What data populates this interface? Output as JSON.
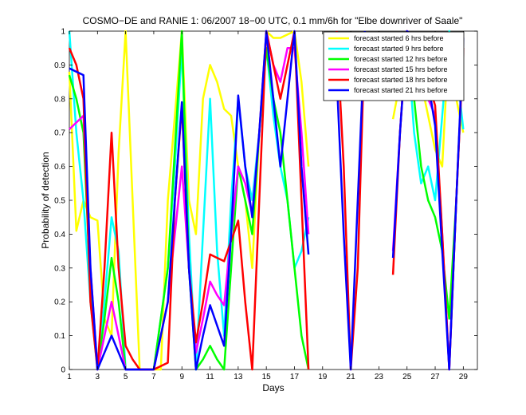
{
  "chart_data": {
    "type": "line",
    "title": "COSMO−DE and RANIE 1: 06/2007 18−00 UTC, 0.1 mm/6h for \"Elbe downriver of Saale\"",
    "xlabel": "Days",
    "ylabel": "Probability of detection",
    "xlim": [
      1,
      30
    ],
    "ylim": [
      0,
      1
    ],
    "x_ticks": [
      1,
      3,
      5,
      7,
      9,
      11,
      13,
      15,
      17,
      19,
      21,
      23,
      25,
      27,
      29
    ],
    "y_ticks": [
      0,
      0.1,
      0.2,
      0.3,
      0.4,
      0.5,
      0.6,
      0.7,
      0.8,
      0.9,
      1
    ],
    "y_tick_labels": [
      "0",
      "0.1",
      "0.2",
      "0.3",
      "0.4",
      "0.5",
      "0.6",
      "0.7",
      "0.8",
      "0.9",
      "1"
    ],
    "legend_position": "top-right",
    "series": [
      {
        "name": "forecast started 6 hrs before",
        "color": "#ffff00",
        "segments": [
          [
            [
              1,
              0.88
            ],
            [
              1.5,
              0.41
            ],
            [
              2,
              0.5
            ],
            [
              2.5,
              0.45
            ],
            [
              3,
              0.44
            ],
            [
              3.5,
              0.15
            ],
            [
              4,
              0.1
            ],
            [
              4.5,
              0.64
            ],
            [
              5,
              1.0
            ],
            [
              5.5,
              0.5
            ],
            [
              6,
              0.0
            ],
            [
              6.5,
              0.0
            ],
            [
              7,
              0.0
            ],
            [
              7.5,
              0.0
            ],
            [
              8,
              0.5
            ],
            [
              8.5,
              0.75
            ],
            [
              9,
              1.0
            ],
            [
              9.5,
              0.5
            ],
            [
              10,
              0.4
            ],
            [
              10.5,
              0.8
            ],
            [
              11,
              0.9
            ],
            [
              11.5,
              0.85
            ],
            [
              12,
              0.77
            ],
            [
              12.5,
              0.75
            ],
            [
              13,
              0.6
            ],
            [
              13.5,
              0.5
            ],
            [
              14,
              0.3
            ],
            [
              14.5,
              0.7
            ],
            [
              15,
              1.0
            ],
            [
              15.5,
              0.98
            ],
            [
              16,
              0.98
            ],
            [
              16.5,
              0.99
            ],
            [
              17,
              1.0
            ],
            [
              17.5,
              0.85
            ],
            [
              18,
              0.6
            ]
          ],
          [
            [
              24,
              0.74
            ],
            [
              24.5,
              0.85
            ],
            [
              25,
              1.0
            ],
            [
              25.5,
              0.95
            ],
            [
              26,
              0.85
            ],
            [
              26.5,
              0.75
            ],
            [
              27,
              0.65
            ],
            [
              27.5,
              0.6
            ],
            [
              28,
              1.0
            ],
            [
              28.5,
              0.8
            ],
            [
              29,
              0.7
            ]
          ]
        ]
      },
      {
        "name": "forecast started 9 hrs before",
        "color": "#00ffff",
        "segments": [
          [
            [
              1,
              1.0
            ],
            [
              1.5,
              0.7
            ],
            [
              2,
              0.5
            ],
            [
              2.5,
              0.2
            ],
            [
              3,
              0.0
            ],
            [
              3.5,
              0.2
            ],
            [
              4,
              0.45
            ],
            [
              4.5,
              0.35
            ],
            [
              5,
              0.0
            ],
            [
              5.5,
              0.0
            ],
            [
              6,
              0.0
            ],
            [
              7,
              0.0
            ],
            [
              8,
              0.3
            ],
            [
              8.5,
              0.6
            ],
            [
              9,
              0.95
            ],
            [
              9.5,
              0.4
            ],
            [
              10,
              0.0
            ],
            [
              10.5,
              0.4
            ],
            [
              11,
              0.8
            ],
            [
              11.5,
              0.35
            ],
            [
              12,
              0.1
            ],
            [
              12.5,
              0.5
            ],
            [
              13,
              0.8
            ],
            [
              13.5,
              0.6
            ],
            [
              14,
              0.5
            ],
            [
              14.5,
              0.7
            ],
            [
              15,
              0.95
            ],
            [
              15.5,
              0.75
            ],
            [
              16,
              0.6
            ],
            [
              16.5,
              0.5
            ],
            [
              17,
              0.3
            ],
            [
              17.5,
              0.35
            ],
            [
              18,
              0.45
            ]
          ],
          [
            [
              24,
              0.83
            ],
            [
              24.5,
              0.9
            ],
            [
              25,
              0.99
            ],
            [
              25.5,
              0.7
            ],
            [
              26,
              0.55
            ],
            [
              26.5,
              0.6
            ],
            [
              27,
              0.5
            ],
            [
              27.5,
              0.75
            ],
            [
              28,
              1.0
            ],
            [
              28.5,
              0.9
            ],
            [
              29,
              0.71
            ]
          ]
        ]
      },
      {
        "name": "forecast started 12 hrs before",
        "color": "#00ff00",
        "segments": [
          [
            [
              1,
              0.87
            ],
            [
              1.5,
              0.8
            ],
            [
              2,
              0.7
            ],
            [
              2.5,
              0.25
            ],
            [
              3,
              0.0
            ],
            [
              3.5,
              0.15
            ],
            [
              4,
              0.33
            ],
            [
              4.5,
              0.2
            ],
            [
              5,
              0.0
            ],
            [
              6,
              0.0
            ],
            [
              7,
              0.0
            ],
            [
              8,
              0.3
            ],
            [
              8.5,
              0.65
            ],
            [
              9,
              1.0
            ],
            [
              9.5,
              0.3
            ],
            [
              10,
              0.0
            ],
            [
              10.5,
              0.03
            ],
            [
              11,
              0.07
            ],
            [
              11.5,
              0.03
            ],
            [
              12,
              0.0
            ],
            [
              12.5,
              0.3
            ],
            [
              13,
              0.6
            ],
            [
              13.5,
              0.5
            ],
            [
              14,
              0.4
            ],
            [
              14.5,
              0.7
            ],
            [
              15,
              0.95
            ],
            [
              15.5,
              0.8
            ],
            [
              16,
              0.7
            ],
            [
              16.5,
              0.5
            ],
            [
              17,
              0.3
            ],
            [
              17.5,
              0.1
            ],
            [
              18,
              0.0
            ]
          ],
          [
            [
              24,
              0.83
            ],
            [
              24.5,
              0.9
            ],
            [
              25,
              0.99
            ],
            [
              25.5,
              0.8
            ],
            [
              26,
              0.6
            ],
            [
              26.5,
              0.5
            ],
            [
              27,
              0.45
            ],
            [
              27.5,
              0.35
            ],
            [
              28,
              0.15
            ],
            [
              28.5,
              0.5
            ],
            [
              29,
              0.95
            ]
          ]
        ]
      },
      {
        "name": "forecast started 15 hrs before",
        "color": "#ff00ff",
        "segments": [
          [
            [
              1,
              0.71
            ],
            [
              1.5,
              0.73
            ],
            [
              2,
              0.75
            ],
            [
              2.5,
              0.3
            ],
            [
              3,
              0.0
            ],
            [
              3.5,
              0.1
            ],
            [
              4,
              0.2
            ],
            [
              4.5,
              0.1
            ],
            [
              5,
              0.0
            ],
            [
              6,
              0.0
            ],
            [
              7,
              0.0
            ],
            [
              8,
              0.2
            ],
            [
              8.5,
              0.4
            ],
            [
              9,
              0.6
            ],
            [
              9.5,
              0.3
            ],
            [
              10,
              0.05
            ],
            [
              10.5,
              0.15
            ],
            [
              11,
              0.26
            ],
            [
              11.5,
              0.22
            ],
            [
              12,
              0.19
            ],
            [
              12.5,
              0.4
            ],
            [
              13,
              0.6
            ],
            [
              13.5,
              0.55
            ],
            [
              14,
              0.46
            ],
            [
              14.5,
              0.7
            ],
            [
              15,
              1.0
            ],
            [
              15.5,
              0.9
            ],
            [
              16,
              0.85
            ],
            [
              16.5,
              0.95
            ],
            [
              17,
              0.95
            ],
            [
              17.5,
              0.7
            ],
            [
              18,
              0.4
            ]
          ],
          [
            [
              24,
              0.35
            ],
            [
              24.5,
              0.7
            ],
            [
              25,
              1.0
            ],
            [
              25.5,
              0.9
            ],
            [
              26,
              0.85
            ],
            [
              26.5,
              0.8
            ],
            [
              27,
              0.75
            ],
            [
              27.5,
              0.4
            ],
            [
              28,
              0.0
            ],
            [
              28.5,
              0.5
            ],
            [
              29,
              0.95
            ]
          ]
        ]
      },
      {
        "name": "forecast started 18 hrs before",
        "color": "#ff0000",
        "segments": [
          [
            [
              1,
              0.95
            ],
            [
              1.5,
              0.9
            ],
            [
              2,
              0.8
            ],
            [
              2.5,
              0.2
            ],
            [
              3,
              0.0
            ],
            [
              3.5,
              0.3
            ],
            [
              4,
              0.7
            ],
            [
              4.5,
              0.3
            ],
            [
              5,
              0.07
            ],
            [
              5.5,
              0.03
            ],
            [
              6,
              0.0
            ],
            [
              7,
              0.0
            ],
            [
              8,
              0.02
            ],
            [
              8.5,
              0.5
            ],
            [
              9,
              0.78
            ],
            [
              9.5,
              0.3
            ],
            [
              10,
              0.08
            ],
            [
              10.5,
              0.2
            ],
            [
              11,
              0.34
            ],
            [
              11.5,
              0.33
            ],
            [
              12,
              0.32
            ],
            [
              12.5,
              0.38
            ],
            [
              13,
              0.44
            ],
            [
              13.5,
              0.2
            ],
            [
              14,
              0.0
            ],
            [
              14.5,
              0.5
            ],
            [
              15,
              1.0
            ],
            [
              15.5,
              0.9
            ],
            [
              16,
              0.8
            ],
            [
              16.5,
              0.9
            ],
            [
              17,
              1.0
            ],
            [
              17.5,
              0.5
            ],
            [
              18,
              0.0
            ]
          ],
          [
            [
              20,
              1.0
            ],
            [
              20.5,
              0.6
            ],
            [
              21,
              0.0
            ],
            [
              21.5,
              0.3
            ],
            [
              22,
              1.0
            ]
          ],
          [
            [
              24,
              0.28
            ],
            [
              24.5,
              0.7
            ],
            [
              25,
              1.0
            ],
            [
              25.5,
              0.95
            ],
            [
              26,
              0.9
            ],
            [
              26.5,
              0.85
            ],
            [
              27,
              0.78
            ],
            [
              27.5,
              0.4
            ],
            [
              28,
              0.0
            ],
            [
              28.5,
              0.5
            ],
            [
              29,
              0.95
            ]
          ]
        ]
      },
      {
        "name": "forecast started 21 hrs before",
        "color": "#0000ff",
        "segments": [
          [
            [
              1,
              0.89
            ],
            [
              1.5,
              0.88
            ],
            [
              2,
              0.87
            ],
            [
              2.5,
              0.3
            ],
            [
              3,
              0.0
            ],
            [
              3.5,
              0.05
            ],
            [
              4,
              0.1
            ],
            [
              4.5,
              0.05
            ],
            [
              5,
              0.0
            ],
            [
              6,
              0.0
            ],
            [
              7,
              0.0
            ],
            [
              8,
              0.2
            ],
            [
              8.5,
              0.5
            ],
            [
              9,
              0.79
            ],
            [
              9.5,
              0.3
            ],
            [
              10,
              0.0
            ],
            [
              10.5,
              0.1
            ],
            [
              11,
              0.19
            ],
            [
              11.5,
              0.13
            ],
            [
              12,
              0.07
            ],
            [
              12.5,
              0.4
            ],
            [
              13,
              0.81
            ],
            [
              13.5,
              0.6
            ],
            [
              14,
              0.45
            ],
            [
              14.5,
              0.7
            ],
            [
              15,
              1.0
            ],
            [
              15.5,
              0.8
            ],
            [
              16,
              0.6
            ],
            [
              16.5,
              0.8
            ],
            [
              17,
              1.0
            ],
            [
              17.5,
              0.6
            ],
            [
              18,
              0.34
            ]
          ],
          [
            [
              20,
              0.87
            ],
            [
              20.5,
              0.4
            ],
            [
              21,
              0.0
            ],
            [
              21.5,
              0.5
            ],
            [
              22,
              1.0
            ]
          ],
          [
            [
              24,
              0.33
            ],
            [
              24.5,
              0.7
            ],
            [
              25,
              1.0
            ],
            [
              25.5,
              0.98
            ],
            [
              26,
              0.95
            ],
            [
              26.5,
              0.85
            ],
            [
              27,
              0.72
            ],
            [
              27.5,
              0.35
            ],
            [
              28,
              0.0
            ],
            [
              28.5,
              0.5
            ],
            [
              29,
              0.98
            ]
          ]
        ]
      }
    ]
  }
}
